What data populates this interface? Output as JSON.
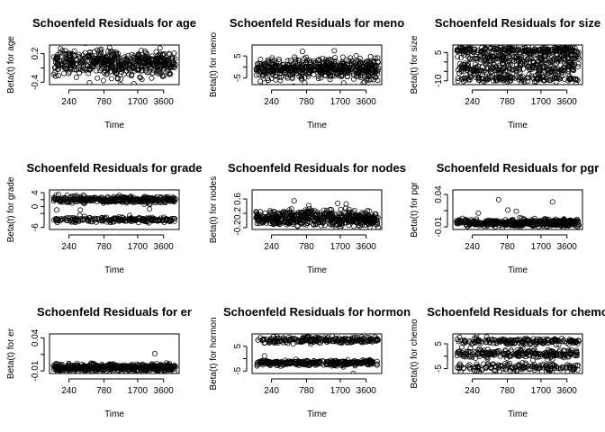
{
  "chart_data": [
    {
      "type": "scatter",
      "title": "Schoenfeld Residuals for age",
      "xlabel": "Time",
      "ylabel": "Beta(t) for age",
      "x_ticks": [
        "240",
        "780",
        "1700",
        "3600"
      ],
      "y_ticks": [
        "-0.4",
        "0.2"
      ],
      "y_minor": [
        -0.1
      ],
      "ylim": [
        -0.45,
        0.38
      ],
      "clusters": [
        {
          "center": 0.0,
          "spread": 0.13,
          "n": 520
        }
      ]
    },
    {
      "type": "scatter",
      "title": "Schoenfeld Residuals for meno",
      "xlabel": "Time",
      "ylabel": "Beta(t) for meno",
      "x_ticks": [
        "240",
        "780",
        "1700",
        "3600"
      ],
      "y_ticks": [
        "-5",
        "5"
      ],
      "y_minor": [
        0
      ],
      "ylim": [
        -8,
        10
      ],
      "clusters": [
        {
          "center": -1.0,
          "spread": 2.4,
          "n": 520
        }
      ]
    },
    {
      "type": "scatter",
      "title": "Schoenfeld Residuals for size",
      "xlabel": "Time",
      "ylabel": "Beta(t) for size",
      "x_ticks": [
        "240",
        "780",
        "1700",
        "3600"
      ],
      "y_ticks": [
        "-10",
        "5"
      ],
      "y_minor": [
        -5,
        0
      ],
      "ylim": [
        -12,
        9
      ],
      "clusters": [
        {
          "center": 6.3,
          "spread": 0.9,
          "n": 220
        },
        {
          "center": 1.5,
          "spread": 2.0,
          "n": 200
        },
        {
          "center": -4.3,
          "spread": 1.7,
          "n": 180
        },
        {
          "center": -9.0,
          "spread": 0.8,
          "n": 120
        }
      ]
    },
    {
      "type": "scatter",
      "title": "Schoenfeld Residuals for grade",
      "xlabel": "Time",
      "ylabel": "Beta(t) for grade",
      "x_ticks": [
        "240",
        "780",
        "1700",
        "3600"
      ],
      "y_ticks": [
        "-6",
        "0",
        "4"
      ],
      "y_minor": [
        -2,
        2
      ],
      "ylim": [
        -6.6,
        4.8
      ],
      "clusters": [
        {
          "center": 2.0,
          "spread": 0.5,
          "n": 330
        },
        {
          "center": -3.8,
          "spread": 0.35,
          "n": 200
        }
      ]
    },
    {
      "type": "scatter",
      "title": "Schoenfeld Residuals for nodes",
      "xlabel": "Time",
      "ylabel": "Beta(t) for nodes",
      "x_ticks": [
        "240",
        "780",
        "1700",
        "3600"
      ],
      "y_ticks": [
        "-0.2",
        "0.2",
        "0.6"
      ],
      "y_minor": [],
      "ylim": [
        -0.25,
        0.85
      ],
      "clusters": [
        {
          "center": 0.06,
          "spread": 0.11,
          "n": 520
        }
      ]
    },
    {
      "type": "scatter",
      "title": "Schoenfeld Residuals for pgr",
      "xlabel": "Time",
      "ylabel": "Beta(t) for pgr",
      "x_ticks": [
        "240",
        "780",
        "1700",
        "3600"
      ],
      "y_ticks": [
        "-0.01",
        "0.04"
      ],
      "y_minor": [
        0.015
      ],
      "ylim": [
        -0.014,
        0.047
      ],
      "clusters": [
        {
          "center": -0.004,
          "spread": 0.0025,
          "n": 480
        }
      ]
    },
    {
      "type": "scatter",
      "title": "Schoenfeld Residuals for er",
      "xlabel": "Time",
      "ylabel": "Beta(t) for er",
      "x_ticks": [
        "240",
        "780",
        "1700",
        "3600"
      ],
      "y_ticks": [
        "-0.01",
        "0.04"
      ],
      "y_minor": [
        0.015
      ],
      "ylim": [
        -0.014,
        0.046
      ],
      "clusters": [
        {
          "center": -0.005,
          "spread": 0.0028,
          "n": 480
        }
      ]
    },
    {
      "type": "scatter",
      "title": "Schoenfeld Residuals for hormon",
      "xlabel": "Time",
      "ylabel": "Beta(t) for hormon",
      "x_ticks": [
        "240",
        "780",
        "1700",
        "3600"
      ],
      "y_ticks": [
        "-5",
        "5"
      ],
      "y_minor": [
        0
      ],
      "ylim": [
        -6,
        10
      ],
      "clusters": [
        {
          "center": 7.5,
          "spread": 0.6,
          "n": 230
        },
        {
          "center": -1.7,
          "spread": 0.5,
          "n": 300
        }
      ]
    },
    {
      "type": "scatter",
      "title": "Schoenfeld Residuals for chemo",
      "xlabel": "Time",
      "ylabel": "Beta(t) for chemo",
      "x_ticks": [
        "240",
        "780",
        "1700",
        "3600"
      ],
      "y_ticks": [
        "-5",
        "5"
      ],
      "y_minor": [
        0
      ],
      "ylim": [
        -7,
        9
      ],
      "clusters": [
        {
          "center": 6.0,
          "spread": 0.7,
          "n": 180
        },
        {
          "center": 1.0,
          "spread": 0.9,
          "n": 220
        },
        {
          "center": -4.5,
          "spread": 0.8,
          "n": 150
        }
      ]
    }
  ]
}
